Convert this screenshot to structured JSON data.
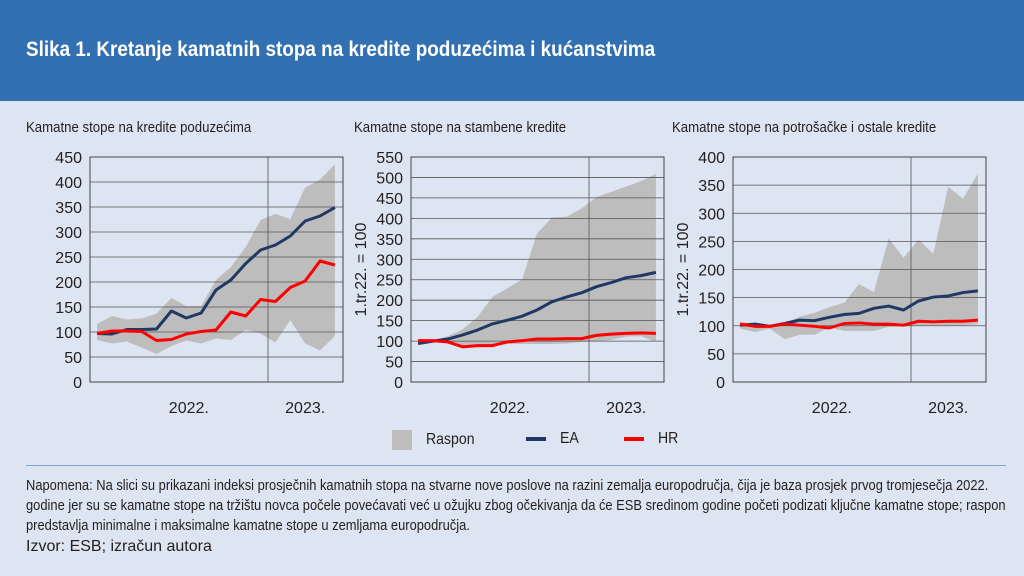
{
  "title": "Slika 1. Kretanje kamatnih stopa na kredite poduzećima i kućanstvima",
  "colors": {
    "header": "#3270b2",
    "background": "#dde4f2",
    "range": "#bdbdbd",
    "EA": "#1f3864",
    "HR": "#ff0000"
  },
  "legend": {
    "range": "Raspon",
    "ea": "EA",
    "hr": "HR"
  },
  "note": "Napomena: Na slici su prikazani indeksi prosječnih kamatnih stopa na stvarne nove poslove na razini zemalja europodručja, čija je baza prosjek prvog tromjesečja 2022. godine jer su se kamatne stope na tržištu novca počele povećavati već u ožujku zbog očekivanja da će ESB sredinom godine početi podizati ključne kamatne stope; raspon predstavlja minimalne i maksimalne kamatne stope u zemljama europodručja.",
  "source": "Izvor: ESB; izračun autora",
  "chart_data": [
    {
      "type": "line",
      "title": "Kamatne stope na kredite poduzećima",
      "ylabel": "",
      "ylim": [
        0,
        450
      ],
      "yticks": [
        "0",
        "50",
        "100",
        "150",
        "200",
        "250",
        "300",
        "350",
        "400",
        "450"
      ],
      "xtick_labels": [
        "2022.",
        "2023."
      ],
      "grid": true,
      "range_band": {
        "name": "Raspon",
        "upper": [
          116,
          132,
          125,
          127,
          137,
          168,
          152,
          152,
          204,
          230,
          270,
          324,
          336,
          326,
          389,
          405,
          435
        ],
        "lower": [
          84,
          77,
          81,
          69,
          56,
          72,
          83,
          77,
          87,
          84,
          104,
          97,
          79,
          124,
          77,
          63,
          92
        ]
      },
      "series": [
        {
          "name": "EA",
          "values": [
            97,
            96,
            105,
            105,
            106,
            142,
            128,
            138,
            184,
            204,
            237,
            264,
            274,
            292,
            322,
            332,
            349
          ]
        },
        {
          "name": "HR",
          "values": [
            97,
            102,
            102,
            101,
            83,
            85,
            96,
            101,
            104,
            140,
            132,
            165,
            161,
            189,
            202,
            242,
            234
          ]
        }
      ]
    },
    {
      "type": "line",
      "title": "Kamatne stope na stambene kredite",
      "ylabel": "1.tr.22. = 100",
      "ylim": [
        0,
        550
      ],
      "yticks": [
        "0",
        "50",
        "100",
        "150",
        "200",
        "250",
        "300",
        "350",
        "400",
        "450",
        "500",
        "550"
      ],
      "xtick_labels": [
        "2022.",
        "2023."
      ],
      "grid": true,
      "range_band": {
        "name": "Raspon",
        "upper": [
          101,
          101,
          112,
          129,
          159,
          208,
          229,
          251,
          363,
          402,
          404,
          424,
          452,
          465,
          478,
          491,
          509
        ],
        "lower": [
          94,
          98,
          94,
          89,
          91,
          89,
          93,
          93,
          93,
          93,
          94,
          98,
          99,
          103,
          111,
          112,
          98
        ]
      },
      "series": [
        {
          "name": "EA",
          "values": [
            94,
            100,
            105,
            115,
            127,
            142,
            151,
            161,
            176,
            196,
            208,
            218,
            233,
            243,
            255,
            260,
            268
          ]
        },
        {
          "name": "HR",
          "values": [
            101,
            101,
            98,
            86,
            89,
            89,
            98,
            101,
            105,
            105,
            106,
            106,
            114,
            117,
            119,
            120,
            119
          ]
        }
      ]
    },
    {
      "type": "line",
      "title": "Kamatne stope na potrošačke i ostale kredite",
      "ylabel": "1.tr.22. = 100",
      "ylim": [
        0,
        400
      ],
      "yticks": [
        "0",
        "50",
        "100",
        "150",
        "200",
        "250",
        "300",
        "350",
        "400"
      ],
      "xtick_labels": [
        "2022.",
        "2023."
      ],
      "grid": true,
      "range_band": {
        "name": "Raspon",
        "upper": [
          107,
          103,
          98,
          105,
          116,
          123,
          133,
          141,
          174,
          160,
          255,
          221,
          253,
          228,
          347,
          326,
          370
        ],
        "lower": [
          95,
          89,
          95,
          76,
          84,
          84,
          97,
          91,
          91,
          91,
          98,
          99,
          101,
          101,
          101,
          101,
          103
        ]
      },
      "series": [
        {
          "name": "EA",
          "values": [
            101,
            103,
            99,
            104,
            110,
            109,
            115,
            120,
            122,
            131,
            135,
            128,
            144,
            151,
            153,
            159,
            162
          ]
        },
        {
          "name": "HR",
          "values": [
            103,
            99,
            99,
            103,
            101,
            99,
            96,
            104,
            105,
            103,
            103,
            101,
            108,
            107,
            108,
            108,
            110
          ]
        }
      ]
    }
  ]
}
